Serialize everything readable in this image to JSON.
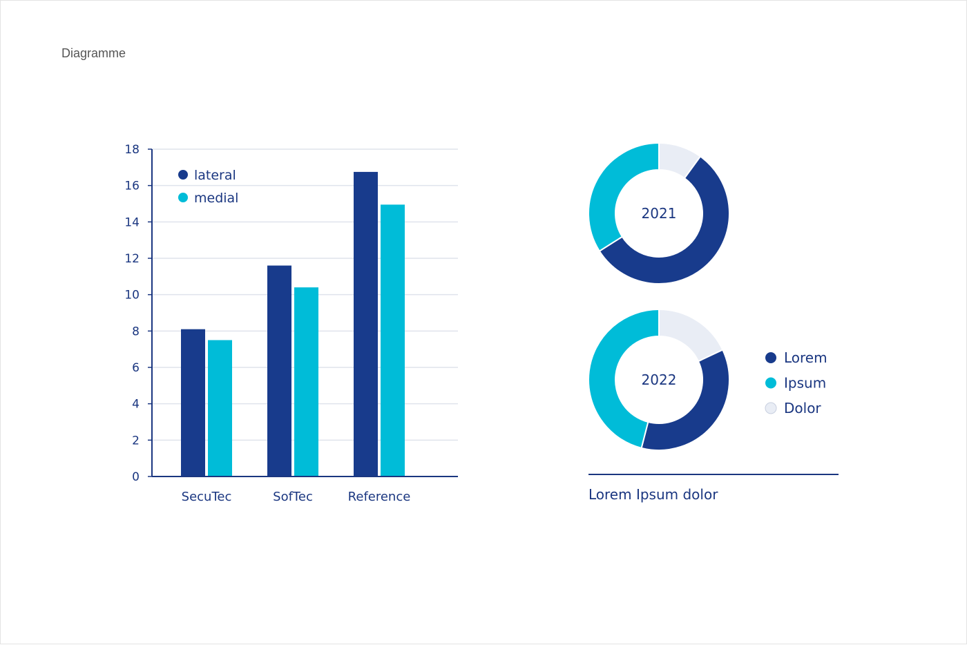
{
  "page": {
    "title": "Diagramme"
  },
  "colors": {
    "dark_blue": "#183b8c",
    "cyan": "#00bcd8",
    "light": "#e9edf5",
    "text": "#1a3680",
    "grid": "#dfe3ec"
  },
  "chart_data": [
    {
      "type": "bar",
      "categories": [
        "SecuTec",
        "SofTec",
        "Reference"
      ],
      "series": [
        {
          "name": "lateral",
          "color": "#183b8c",
          "values": [
            8.1,
            11.6,
            16.75
          ]
        },
        {
          "name": "medial",
          "color": "#00bcd8",
          "values": [
            7.5,
            10.4,
            14.95
          ]
        }
      ],
      "ylim": [
        0,
        18
      ],
      "yticks": [
        0,
        2,
        4,
        6,
        8,
        10,
        12,
        14,
        16,
        18
      ],
      "title": "",
      "xlabel": "",
      "ylabel": "",
      "grid": true,
      "legend": "top-left"
    },
    {
      "type": "pie",
      "variant": "donut",
      "center_label": "2021",
      "slices": [
        {
          "name": "Dolor",
          "value": 10,
          "color": "#e9edf5"
        },
        {
          "name": "Lorem",
          "value": 56,
          "color": "#183b8c"
        },
        {
          "name": "Ipsum",
          "value": 34,
          "color": "#00bcd8"
        }
      ]
    },
    {
      "type": "pie",
      "variant": "donut",
      "center_label": "2022",
      "slices": [
        {
          "name": "Dolor",
          "value": 18,
          "color": "#e9edf5"
        },
        {
          "name": "Lorem",
          "value": 36,
          "color": "#183b8c"
        },
        {
          "name": "Ipsum",
          "value": 46,
          "color": "#00bcd8"
        }
      ]
    }
  ],
  "donut_legend": [
    {
      "label": "Lorem",
      "color": "#183b8c"
    },
    {
      "label": "Ipsum",
      "color": "#00bcd8"
    },
    {
      "label": "Dolor",
      "color": "#e9edf5"
    }
  ],
  "footer": {
    "caption": "Lorem Ipsum dolor"
  }
}
